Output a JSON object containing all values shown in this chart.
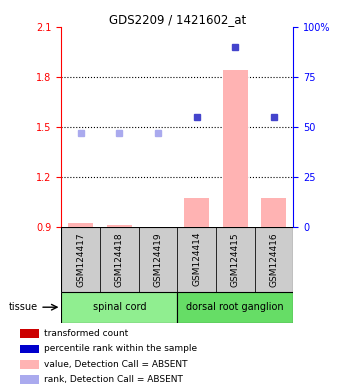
{
  "title": "GDS2209 / 1421602_at",
  "samples": [
    "GSM124417",
    "GSM124418",
    "GSM124419",
    "GSM124414",
    "GSM124415",
    "GSM124416"
  ],
  "bar_values": [
    0.92,
    0.91,
    0.9,
    1.07,
    1.84,
    1.07
  ],
  "dot_values": [
    1.465,
    1.465,
    1.465,
    1.56,
    1.98,
    1.56
  ],
  "dot_absent": [
    true,
    true,
    true,
    false,
    false,
    false
  ],
  "ylim_left": [
    0.9,
    2.1
  ],
  "ylim_right": [
    0,
    100
  ],
  "yticks_left": [
    0.9,
    1.2,
    1.5,
    1.8,
    2.1
  ],
  "yticks_right": [
    0,
    25,
    50,
    75,
    100
  ],
  "ytick_labels_left": [
    "0.9",
    "1.2",
    "1.5",
    "1.8",
    "2.1"
  ],
  "ytick_labels_right": [
    "0",
    "25",
    "50",
    "75",
    "100%"
  ],
  "bar_base": 0.9,
  "tissue_groups": [
    {
      "label": "spinal cord",
      "start": 0,
      "end": 3,
      "color": "#90EE90"
    },
    {
      "label": "dorsal root ganglion",
      "start": 3,
      "end": 6,
      "color": "#66DD66"
    }
  ],
  "tissue_label": "tissue",
  "bar_absent_color": "#ffb3b3",
  "dot_present_color": "#4444cc",
  "dot_absent_color": "#aaaaee",
  "bar_width": 0.65,
  "sq_colors": [
    "#cc0000",
    "#0000cc",
    "#ffb3b3",
    "#aaaaee"
  ],
  "leg_labels": [
    "transformed count",
    "percentile rank within the sample",
    "value, Detection Call = ABSENT",
    "rank, Detection Call = ABSENT"
  ]
}
